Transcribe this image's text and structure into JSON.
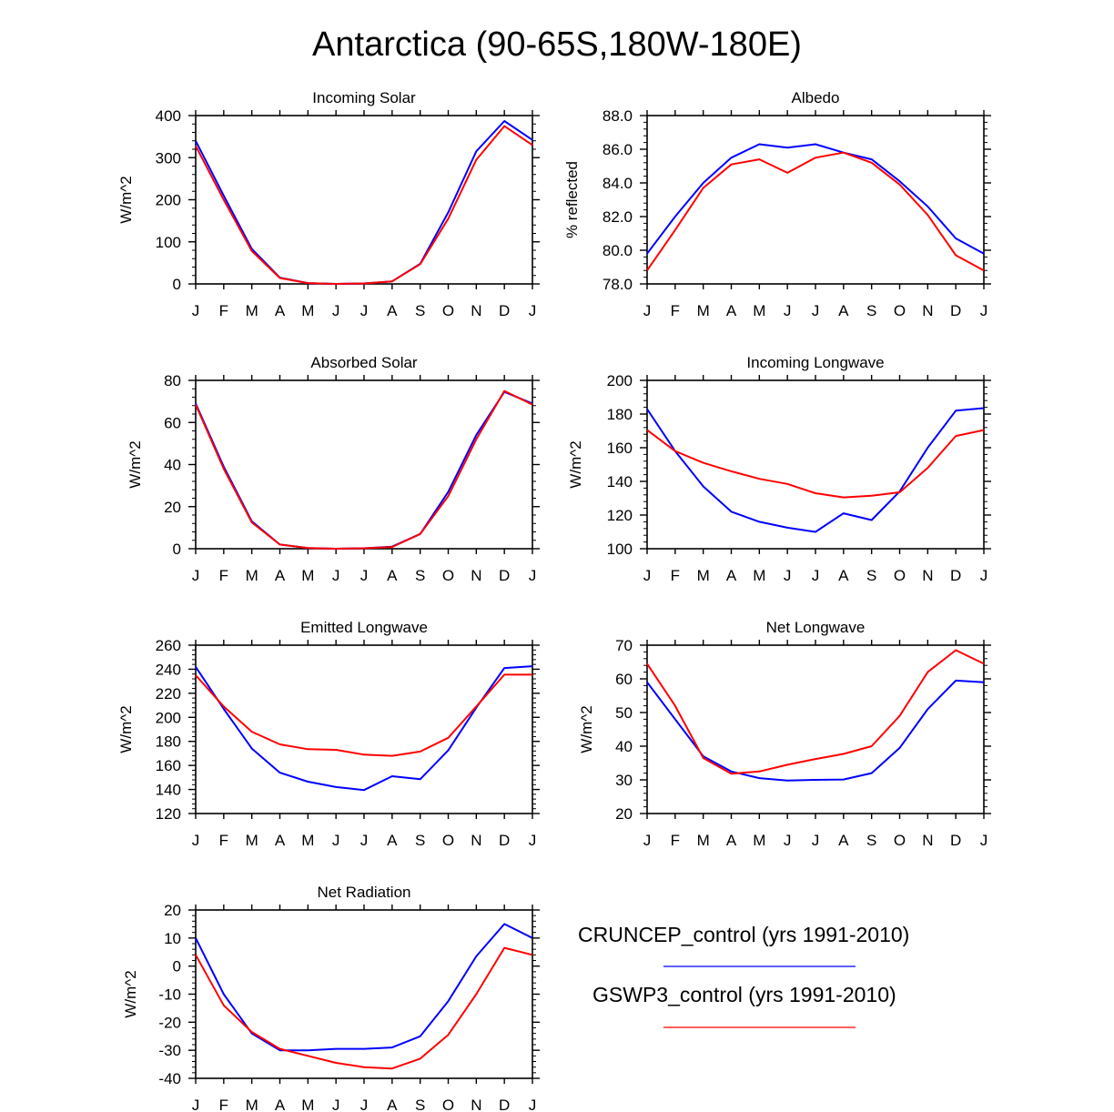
{
  "title": "Antarctica (90-65S,180W-180E)",
  "months": [
    "J",
    "F",
    "M",
    "A",
    "M",
    "J",
    "J",
    "A",
    "S",
    "O",
    "N",
    "D",
    "J"
  ],
  "colors": {
    "CRUNCEP": "#0000ff",
    "GSWP3": "#ff0000"
  },
  "legend": [
    {
      "label": "CRUNCEP_control (yrs 1991-2010)",
      "color": "#0000ff"
    },
    {
      "label": "GSWP3_control (yrs 1991-2010)",
      "color": "#ff0000"
    }
  ],
  "chart_data": [
    {
      "type": "line",
      "title": "Incoming Solar",
      "ylabel": "W/m^2",
      "ylim": [
        0,
        400
      ],
      "yticks": [
        0,
        100,
        200,
        300,
        400
      ],
      "ytick_labels": [
        "0",
        "100",
        "200",
        "300",
        "400"
      ],
      "series": [
        {
          "name": "CRUNCEP_control",
          "color": "#0000ff",
          "values": [
            340,
            210,
            83,
            15,
            2,
            0,
            1,
            6,
            48,
            170,
            315,
            387,
            342
          ]
        },
        {
          "name": "GSWP3_control",
          "color": "#ff0000",
          "values": [
            328,
            200,
            78,
            14,
            2,
            0,
            1,
            6,
            47,
            155,
            295,
            375,
            330
          ]
        }
      ]
    },
    {
      "type": "line",
      "title": "Albedo",
      "ylabel": "% reflected",
      "ylim": [
        78,
        88
      ],
      "yticks": [
        78,
        80,
        82,
        84,
        86,
        88
      ],
      "ytick_labels": [
        "78.0",
        "80.0",
        "82.0",
        "84.0",
        "86.0",
        "88.0"
      ],
      "series": [
        {
          "name": "CRUNCEP_control",
          "color": "#0000ff",
          "values": [
            79.8,
            82.0,
            84.0,
            85.5,
            86.3,
            86.1,
            86.3,
            85.8,
            85.4,
            84.1,
            82.6,
            80.7,
            79.8
          ]
        },
        {
          "name": "GSWP3_control",
          "color": "#ff0000",
          "values": [
            78.8,
            81.2,
            83.7,
            85.1,
            85.4,
            84.6,
            85.5,
            85.8,
            85.2,
            83.9,
            82.1,
            79.7,
            78.8
          ]
        }
      ]
    },
    {
      "type": "line",
      "title": "Absorbed Solar",
      "ylabel": "W/m^2",
      "ylim": [
        0,
        80
      ],
      "yticks": [
        0,
        20,
        40,
        60,
        80
      ],
      "ytick_labels": [
        "0",
        "20",
        "40",
        "60",
        "80"
      ],
      "series": [
        {
          "name": "CRUNCEP_control",
          "color": "#0000ff",
          "values": [
            69,
            39,
            13,
            2,
            0.3,
            0,
            0.2,
            1,
            7,
            27,
            54,
            74.5,
            69
          ]
        },
        {
          "name": "GSWP3_control",
          "color": "#ff0000",
          "values": [
            68.5,
            38,
            12.5,
            2,
            0.3,
            0,
            0.2,
            0.8,
            7,
            25,
            52,
            75,
            68.5
          ]
        }
      ]
    },
    {
      "type": "line",
      "title": "Incoming Longwave",
      "ylabel": "W/m^2",
      "ylim": [
        100,
        200
      ],
      "yticks": [
        100,
        120,
        140,
        160,
        180,
        200
      ],
      "ytick_labels": [
        "100",
        "120",
        "140",
        "160",
        "180",
        "200"
      ],
      "series": [
        {
          "name": "CRUNCEP_control",
          "color": "#0000ff",
          "values": [
            183,
            158,
            137,
            122,
            116,
            112.5,
            110,
            121,
            117,
            134,
            160,
            182,
            183.5
          ]
        },
        {
          "name": "GSWP3_control",
          "color": "#ff0000",
          "values": [
            170.5,
            158,
            151,
            146,
            141.5,
            138.5,
            133,
            130.5,
            131.5,
            133.5,
            148,
            167,
            170.5
          ]
        }
      ]
    },
    {
      "type": "line",
      "title": "Emitted Longwave",
      "ylabel": "W/m^2",
      "ylim": [
        120,
        260
      ],
      "yticks": [
        120,
        140,
        160,
        180,
        200,
        220,
        240,
        260
      ],
      "ytick_labels": [
        "120",
        "140",
        "160",
        "180",
        "200",
        "220",
        "240",
        "260"
      ],
      "series": [
        {
          "name": "CRUNCEP_control",
          "color": "#0000ff",
          "values": [
            242,
            207,
            174,
            154,
            146.5,
            142,
            139.5,
            151,
            148.5,
            172.5,
            208,
            241,
            242.5
          ]
        },
        {
          "name": "GSWP3_control",
          "color": "#ff0000",
          "values": [
            235,
            209,
            188,
            177.5,
            173.5,
            173,
            169,
            168,
            171.5,
            183,
            209,
            235.5,
            235.5
          ]
        }
      ]
    },
    {
      "type": "line",
      "title": "Net Longwave",
      "ylabel": "W/m^2",
      "ylim": [
        20,
        70
      ],
      "yticks": [
        20,
        30,
        40,
        50,
        60,
        70
      ],
      "ytick_labels": [
        "20",
        "30",
        "40",
        "50",
        "60",
        "70"
      ],
      "series": [
        {
          "name": "CRUNCEP_control",
          "color": "#0000ff",
          "values": [
            59,
            48,
            37,
            32.5,
            30.5,
            29.8,
            30,
            30.1,
            32,
            39.5,
            51,
            59.5,
            59
          ]
        },
        {
          "name": "GSWP3_control",
          "color": "#ff0000",
          "values": [
            64.5,
            52,
            36.5,
            31.8,
            32.5,
            34.5,
            36.2,
            37.7,
            40,
            49,
            62,
            68.5,
            64.5
          ]
        }
      ]
    },
    {
      "type": "line",
      "title": "Net Radiation",
      "ylabel": "W/m^2",
      "ylim": [
        -40,
        20
      ],
      "yticks": [
        -40,
        -30,
        -20,
        -10,
        0,
        10,
        20
      ],
      "ytick_labels": [
        "-40",
        "-30",
        "-20",
        "-10",
        "0",
        "10",
        "20"
      ],
      "series": [
        {
          "name": "CRUNCEP_control",
          "color": "#0000ff",
          "values": [
            10,
            -10,
            -24,
            -30,
            -30,
            -29.5,
            -29.5,
            -29,
            -25,
            -12.5,
            3.5,
            15,
            10
          ]
        },
        {
          "name": "GSWP3_control",
          "color": "#ff0000",
          "values": [
            4,
            -14,
            -23.5,
            -29.5,
            -32,
            -34.5,
            -36,
            -36.5,
            -33,
            -24.5,
            -10,
            6.5,
            4
          ]
        }
      ]
    }
  ]
}
